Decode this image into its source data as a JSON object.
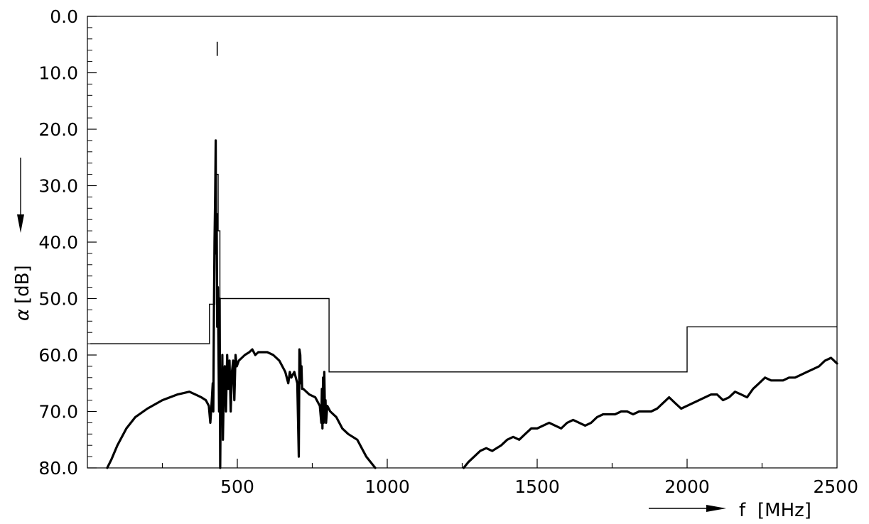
{
  "chart_data": {
    "type": "line",
    "xlabel": "f",
    "xunit": "[MHz]",
    "ylabel": "α",
    "yunit": "[dB]",
    "xlim": [
      0,
      2500
    ],
    "ylim": [
      0,
      80
    ],
    "y_inverted": true,
    "x_ticks": [
      "500",
      "1000",
      "1500",
      "2000",
      "2500"
    ],
    "y_ticks": [
      "0.0",
      "10.0",
      "20.0",
      "30.0",
      "40.0",
      "50.0",
      "60.0",
      "70.0",
      "80.0"
    ],
    "grid": false,
    "series": [
      {
        "role": "limit-mask",
        "style": "step",
        "points": [
          [
            10,
            58
          ],
          [
            407,
            58
          ],
          [
            407,
            51
          ],
          [
            425,
            51
          ],
          [
            425,
            28
          ],
          [
            436,
            28
          ],
          [
            436,
            38
          ],
          [
            442,
            38
          ],
          [
            442,
            50
          ],
          [
            806,
            50
          ],
          [
            806,
            63
          ],
          [
            2000,
            63
          ],
          [
            2000,
            55
          ],
          [
            2500,
            55
          ]
        ]
      },
      {
        "role": "marker",
        "points": [
          [
            433,
            4.5
          ],
          [
            433,
            7
          ]
        ]
      },
      {
        "role": "measured-attenuation",
        "style": "thick",
        "segments": [
          [
            [
              66,
              80
            ],
            [
              80,
              78.5
            ],
            [
              100,
              76
            ],
            [
              130,
              73
            ],
            [
              160,
              71
            ],
            [
              200,
              69.5
            ],
            [
              250,
              68
            ],
            [
              300,
              67
            ],
            [
              340,
              66.5
            ],
            [
              360,
              67
            ],
            [
              380,
              67.5
            ],
            [
              395,
              68
            ],
            [
              405,
              69
            ],
            [
              410,
              72
            ],
            [
              415,
              68
            ],
            [
              418,
              65
            ],
            [
              420,
              70
            ],
            [
              422,
              52
            ],
            [
              424,
              40
            ],
            [
              426,
              32
            ],
            [
              428,
              22
            ],
            [
              429,
              42
            ],
            [
              431,
              35
            ],
            [
              433,
              55
            ],
            [
              435,
              48
            ],
            [
              437,
              58
            ],
            [
              439,
              70
            ],
            [
              441,
              50
            ],
            [
              443,
              80
            ],
            [
              445,
              65
            ],
            [
              447,
              72
            ],
            [
              450,
              60
            ],
            [
              452,
              75
            ],
            [
              455,
              66
            ],
            [
              458,
              62
            ],
            [
              462,
              70
            ],
            [
              466,
              60
            ],
            [
              470,
              66
            ],
            [
              474,
              61
            ],
            [
              478,
              70
            ],
            [
              482,
              63
            ],
            [
              486,
              61
            ],
            [
              490,
              68
            ],
            [
              494,
              60
            ],
            [
              498,
              62
            ],
            [
              505,
              61
            ],
            [
              515,
              60.5
            ],
            [
              525,
              60
            ],
            [
              540,
              59.5
            ],
            [
              550,
              59
            ],
            [
              560,
              60
            ],
            [
              570,
              59.5
            ],
            [
              580,
              59.5
            ],
            [
              600,
              59.5
            ],
            [
              620,
              60
            ],
            [
              640,
              61
            ],
            [
              660,
              63
            ],
            [
              670,
              65
            ],
            [
              675,
              63
            ],
            [
              680,
              64
            ],
            [
              690,
              63
            ],
            [
              700,
              65
            ],
            [
              705,
              78
            ],
            [
              707,
              59
            ],
            [
              710,
              60
            ],
            [
              712,
              65
            ],
            [
              714,
              62
            ],
            [
              716,
              66
            ],
            [
              720,
              66
            ],
            [
              740,
              67
            ],
            [
              760,
              67.5
            ],
            [
              775,
              69
            ],
            [
              780,
              72
            ],
            [
              782,
              66
            ],
            [
              784,
              73
            ],
            [
              786,
              64
            ],
            [
              788,
              72
            ],
            [
              790,
              63
            ],
            [
              792,
              69
            ],
            [
              794,
              68
            ],
            [
              796,
              72
            ],
            [
              800,
              69
            ],
            [
              810,
              70
            ],
            [
              830,
              71
            ],
            [
              850,
              73
            ],
            [
              870,
              74
            ],
            [
              900,
              75
            ],
            [
              930,
              78
            ],
            [
              960,
              80
            ]
          ],
          [
            [
              1255,
              80
            ],
            [
              1270,
              79
            ],
            [
              1290,
              78
            ],
            [
              1310,
              77
            ],
            [
              1330,
              76.5
            ],
            [
              1350,
              77
            ],
            [
              1380,
              76
            ],
            [
              1400,
              75
            ],
            [
              1420,
              74.5
            ],
            [
              1440,
              75
            ],
            [
              1460,
              74
            ],
            [
              1480,
              73
            ],
            [
              1500,
              73
            ],
            [
              1520,
              72.5
            ],
            [
              1540,
              72
            ],
            [
              1560,
              72.5
            ],
            [
              1580,
              73
            ],
            [
              1600,
              72
            ],
            [
              1620,
              71.5
            ],
            [
              1640,
              72
            ],
            [
              1660,
              72.5
            ],
            [
              1680,
              72
            ],
            [
              1700,
              71
            ],
            [
              1720,
              70.5
            ],
            [
              1740,
              70.5
            ],
            [
              1760,
              70.5
            ],
            [
              1780,
              70
            ],
            [
              1800,
              70
            ],
            [
              1820,
              70.5
            ],
            [
              1840,
              70
            ],
            [
              1860,
              70
            ],
            [
              1880,
              70
            ],
            [
              1900,
              69.5
            ],
            [
              1920,
              68.5
            ],
            [
              1940,
              67.5
            ],
            [
              1960,
              68.5
            ],
            [
              1980,
              69.5
            ],
            [
              2000,
              69
            ],
            [
              2020,
              68.5
            ],
            [
              2040,
              68
            ],
            [
              2060,
              67.5
            ],
            [
              2080,
              67
            ],
            [
              2100,
              67
            ],
            [
              2120,
              68
            ],
            [
              2140,
              67.5
            ],
            [
              2160,
              66.5
            ],
            [
              2180,
              67
            ],
            [
              2200,
              67.5
            ],
            [
              2220,
              66
            ],
            [
              2240,
              65
            ],
            [
              2260,
              64
            ],
            [
              2280,
              64.5
            ],
            [
              2300,
              64.5
            ],
            [
              2320,
              64.5
            ],
            [
              2340,
              64
            ],
            [
              2360,
              64
            ],
            [
              2380,
              63.5
            ],
            [
              2400,
              63
            ],
            [
              2420,
              62.5
            ],
            [
              2440,
              62
            ],
            [
              2460,
              61
            ],
            [
              2480,
              60.5
            ],
            [
              2500,
              61.5
            ]
          ]
        ]
      }
    ]
  }
}
